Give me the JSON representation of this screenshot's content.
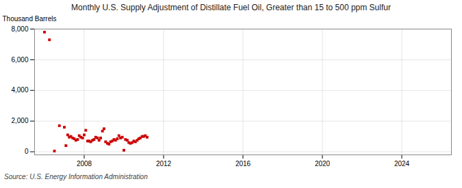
{
  "chart_data": {
    "type": "scatter",
    "title": "Monthly U.S. Supply Adjustment of Distillate Fuel Oil, Greater than 15 to 500 ppm Sulfur",
    "ylabel": "Thousand Barrels",
    "source": "Source: U.S. Energy Information Administration",
    "color": "#cc0000",
    "marker": "square",
    "grid": true,
    "xlim": [
      2005.5,
      2026.5
    ],
    "xticks": [
      2008,
      2012,
      2016,
      2020,
      2024
    ],
    "ylim": [
      -200,
      8000
    ],
    "yticks": [
      0,
      {
        "value": 2000,
        "label": "2,000"
      },
      {
        "value": 4000,
        "label": "4,000"
      },
      {
        "value": 6000,
        "label": "6,000"
      },
      {
        "value": 8000,
        "label": "8,000"
      }
    ],
    "x": [
      2006.0,
      2006.25,
      2006.5,
      2006.75,
      2007.0,
      2007.08,
      2007.17,
      2007.25,
      2007.33,
      2007.42,
      2007.5,
      2007.58,
      2007.67,
      2007.75,
      2007.83,
      2007.92,
      2008.0,
      2008.08,
      2008.17,
      2008.25,
      2008.33,
      2008.42,
      2008.5,
      2008.58,
      2008.67,
      2008.75,
      2008.83,
      2008.92,
      2009.0,
      2009.08,
      2009.17,
      2009.25,
      2009.33,
      2009.42,
      2009.5,
      2009.58,
      2009.67,
      2009.75,
      2009.83,
      2009.92,
      2010.0,
      2010.08,
      2010.17,
      2010.25,
      2010.33,
      2010.42,
      2010.5,
      2010.58,
      2010.67,
      2010.75,
      2010.83,
      2010.92,
      2011.0,
      2011.08,
      2011.17
    ],
    "values": [
      7800,
      7300,
      50,
      1700,
      1600,
      400,
      1100,
      950,
      1000,
      900,
      850,
      750,
      800,
      1050,
      950,
      900,
      1100,
      1400,
      700,
      700,
      650,
      750,
      800,
      950,
      900,
      750,
      900,
      1350,
      1500,
      650,
      550,
      500,
      650,
      700,
      800,
      750,
      850,
      1050,
      900,
      950,
      100,
      800,
      750,
      600,
      550,
      600,
      700,
      650,
      750,
      850,
      900,
      1000,
      1000,
      1050,
      950
    ]
  }
}
